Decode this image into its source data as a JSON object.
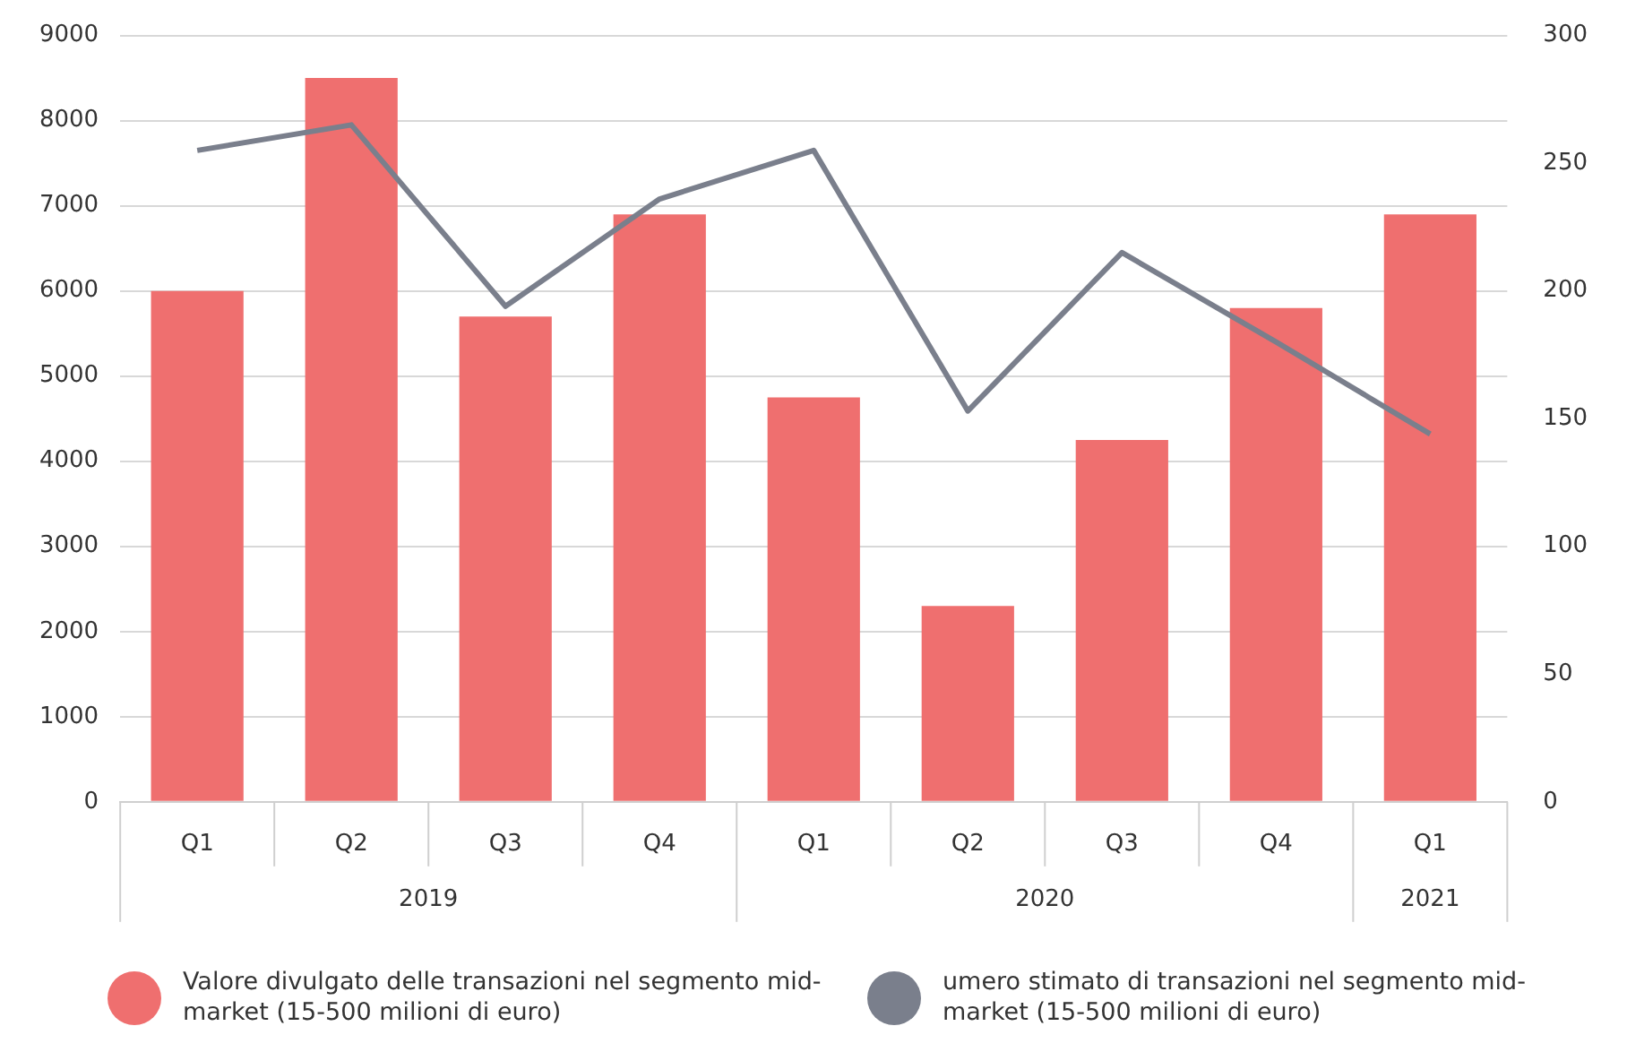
{
  "chart_data": {
    "type": "bar",
    "categories": [
      "Q1",
      "Q2",
      "Q3",
      "Q4",
      "Q1",
      "Q2",
      "Q3",
      "Q4",
      "Q1"
    ],
    "series": [
      {
        "name": "Valore divulgato delle transazioni nel segmento mid-market (15-500 milioni di euro)",
        "color": "#ef6f6f",
        "values": [
          6000,
          8500,
          5700,
          6900,
          4750,
          2300,
          4250,
          5800,
          6900
        ]
      },
      {
        "name": "umero stimato di transazioni nel segmento mid-market (15-500 milioni di euro)",
        "type": "line",
        "axis": "y2",
        "color": "#7a7f8c",
        "values": [
          255,
          265,
          194,
          236,
          255,
          153,
          215,
          180,
          144
        ]
      }
    ],
    "ylim": [
      0,
      9000
    ],
    "yticks": [
      0,
      1000,
      2000,
      3000,
      4000,
      5000,
      6000,
      7000,
      8000,
      9000
    ],
    "y2lim": [
      0,
      300
    ],
    "y2ticks": [
      0,
      50,
      100,
      150,
      200,
      250,
      300
    ],
    "annotations": [
      "2019",
      "2020",
      "2021"
    ],
    "grid": "y",
    "legend": "bottom",
    "marker": "none",
    "line_style": "solid"
  }
}
